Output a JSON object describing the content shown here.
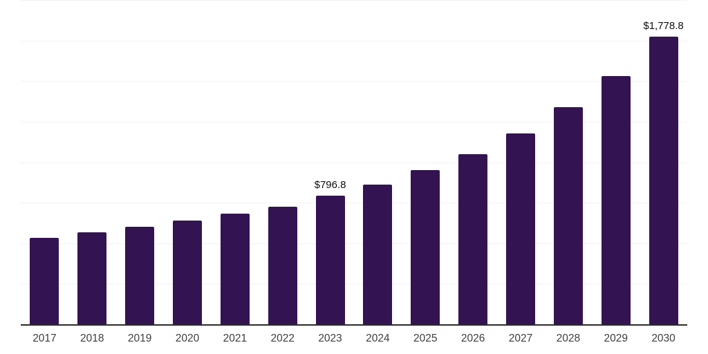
{
  "chart_data": {
    "type": "bar",
    "title": "",
    "xlabel": "",
    "ylabel": "",
    "categories": [
      "2017",
      "2018",
      "2019",
      "2020",
      "2021",
      "2022",
      "2023",
      "2024",
      "2025",
      "2026",
      "2027",
      "2028",
      "2029",
      "2030"
    ],
    "values": [
      536,
      570,
      604,
      642,
      685,
      731,
      796.8,
      864,
      956,
      1054,
      1183,
      1344,
      1536,
      1778.8
    ],
    "data_labels": [
      {
        "category": "2023",
        "text": "$796.8"
      },
      {
        "category": "2030",
        "text": "$1,778.8"
      }
    ],
    "ylim": [
      0,
      2000
    ],
    "gridline_interval": 250,
    "grid": "horizontal",
    "legend_position": "none",
    "colors": {
      "bar": "#341352",
      "axis_line": "#2b2b2b",
      "gridline": "#f2f2f2",
      "tick_label": "#3d3d3d",
      "data_label": "#0d0d0d",
      "background": "#ffffff"
    }
  }
}
